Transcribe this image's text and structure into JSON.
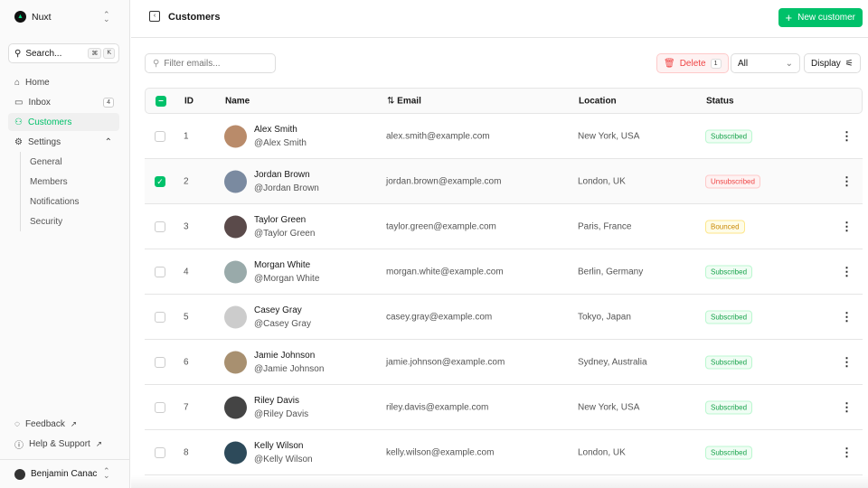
{
  "sidebar": {
    "team": "Nuxt",
    "search_label": "Search...",
    "kbd": [
      "⌘",
      "K"
    ],
    "items": [
      {
        "label": "Home"
      },
      {
        "label": "Inbox",
        "badge": "4"
      },
      {
        "label": "Customers"
      },
      {
        "label": "Settings"
      }
    ],
    "settings_sub": [
      "General",
      "Members",
      "Notifications",
      "Security"
    ],
    "footer": [
      {
        "label": "Feedback"
      },
      {
        "label": "Help & Support"
      }
    ],
    "user": "Benjamin Canac"
  },
  "header": {
    "title": "Customers",
    "new_button": "New customer"
  },
  "toolbar": {
    "filter_placeholder": "Filter emails...",
    "delete_label": "Delete",
    "delete_count": "1",
    "status_select": "All",
    "display_label": "Display"
  },
  "table": {
    "columns": [
      "ID",
      "Name",
      "Email",
      "Location",
      "Status"
    ],
    "rows": [
      {
        "id": "1",
        "name": "Alex Smith",
        "handle": "@Alex Smith",
        "email": "alex.smith@example.com",
        "location": "New York, USA",
        "status": "Subscribed",
        "selected": false
      },
      {
        "id": "2",
        "name": "Jordan Brown",
        "handle": "@Jordan Brown",
        "email": "jordan.brown@example.com",
        "location": "London, UK",
        "status": "Unsubscribed",
        "selected": true
      },
      {
        "id": "3",
        "name": "Taylor Green",
        "handle": "@Taylor Green",
        "email": "taylor.green@example.com",
        "location": "Paris, France",
        "status": "Bounced",
        "selected": false
      },
      {
        "id": "4",
        "name": "Morgan White",
        "handle": "@Morgan White",
        "email": "morgan.white@example.com",
        "location": "Berlin, Germany",
        "status": "Subscribed",
        "selected": false
      },
      {
        "id": "5",
        "name": "Casey Gray",
        "handle": "@Casey Gray",
        "email": "casey.gray@example.com",
        "location": "Tokyo, Japan",
        "status": "Subscribed",
        "selected": false
      },
      {
        "id": "6",
        "name": "Jamie Johnson",
        "handle": "@Jamie Johnson",
        "email": "jamie.johnson@example.com",
        "location": "Sydney, Australia",
        "status": "Subscribed",
        "selected": false
      },
      {
        "id": "7",
        "name": "Riley Davis",
        "handle": "@Riley Davis",
        "email": "riley.davis@example.com",
        "location": "New York, USA",
        "status": "Subscribed",
        "selected": false
      },
      {
        "id": "8",
        "name": "Kelly Wilson",
        "handle": "@Kelly Wilson",
        "email": "kelly.wilson@example.com",
        "location": "London, UK",
        "status": "Subscribed",
        "selected": false
      }
    ]
  },
  "colors": {
    "accent": "#00c16a",
    "subscribed": "#16a34a",
    "unsubscribed": "#ef4444",
    "bounced": "#ca8a04"
  }
}
